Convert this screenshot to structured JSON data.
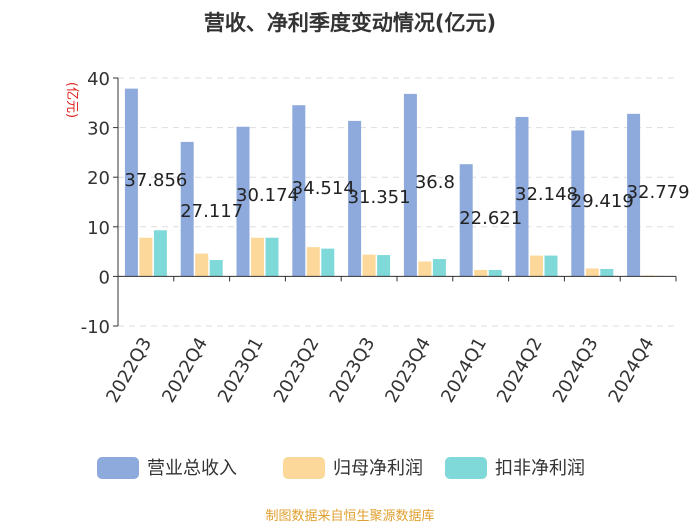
{
  "chart_data": {
    "type": "bar",
    "title": "营收、净利季度变动情况(亿元)",
    "ylabel": "(亿元)",
    "ylim": [
      -10,
      40
    ],
    "yticks": [
      -10,
      0,
      10,
      20,
      30,
      40
    ],
    "grid": true,
    "legend_position": "bottom",
    "categories": [
      "2022Q3",
      "2022Q4",
      "2023Q1",
      "2023Q2",
      "2023Q3",
      "2023Q4",
      "2024Q1",
      "2024Q2",
      "2024Q3",
      "2024Q4"
    ],
    "series": [
      {
        "name": "营业总收入",
        "color": "#8eaadc",
        "values": [
          37.856,
          27.117,
          30.174,
          34.514,
          31.351,
          36.8,
          22.621,
          32.148,
          29.419,
          32.779
        ],
        "labels": [
          "37.856",
          "27.117",
          "30.174",
          "34.514",
          "31.351",
          "36.8",
          "22.621",
          "32.148",
          "29.419",
          "32.779"
        ]
      },
      {
        "name": "归母净利润",
        "color": "#fdd89b",
        "values": [
          7.8,
          4.6,
          7.8,
          5.9,
          4.4,
          3.0,
          1.3,
          4.2,
          1.6,
          0.2
        ]
      },
      {
        "name": "扣非净利润",
        "color": "#7fd9d8",
        "values": [
          9.3,
          3.3,
          7.8,
          5.6,
          4.3,
          3.5,
          1.3,
          4.2,
          1.5,
          0.1
        ]
      }
    ]
  },
  "footer": {
    "source": "制图数据来自恒生聚源数据库"
  }
}
